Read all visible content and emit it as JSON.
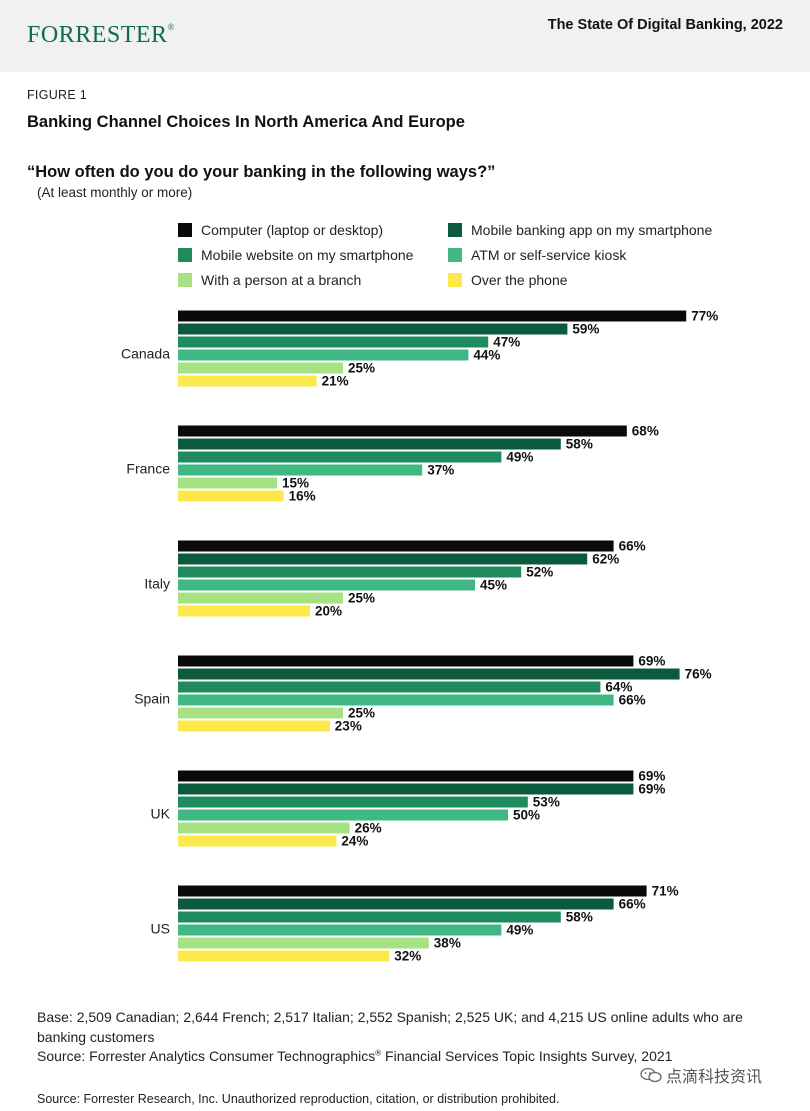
{
  "header": {
    "logo_text": "FORRESTER",
    "logo_mark": "®",
    "report_title": "The State Of Digital Banking, 2022"
  },
  "figure": {
    "label": "FIGURE 1",
    "title": "Banking Channel Choices In North America And Europe"
  },
  "colors": {
    "computer": "#0a0a0a",
    "app": "#0b5a3d",
    "mobile_web": "#1f8a5e",
    "atm": "#3fb883",
    "branch": "#a6e283",
    "phone": "#fce84a",
    "brand": "#0f6b4e"
  },
  "chart_data": {
    "type": "bar",
    "orientation": "horizontal",
    "title": "“How often do you do your banking in the following ways?”",
    "subtitle": "(At least monthly or more)",
    "categories": [
      "Canada",
      "France",
      "Italy",
      "Spain",
      "UK",
      "US"
    ],
    "value_suffix": "%",
    "xlim": [
      0,
      100
    ],
    "legend_position": "top",
    "series": [
      {
        "name": "Computer (laptop or desktop)",
        "color_key": "computer",
        "values": [
          77,
          68,
          66,
          69,
          69,
          71
        ]
      },
      {
        "name": "Mobile banking app on my smartphone",
        "color_key": "app",
        "values": [
          59,
          58,
          62,
          76,
          69,
          66
        ]
      },
      {
        "name": "Mobile website on my smartphone",
        "color_key": "mobile_web",
        "values": [
          47,
          49,
          52,
          64,
          53,
          58
        ]
      },
      {
        "name": "ATM or self-service kiosk",
        "color_key": "atm",
        "values": [
          44,
          37,
          45,
          66,
          50,
          49
        ]
      },
      {
        "name": "With a person at a branch",
        "color_key": "branch",
        "values": [
          25,
          15,
          25,
          25,
          26,
          38
        ]
      },
      {
        "name": "Over the phone",
        "color_key": "phone",
        "values": [
          21,
          16,
          20,
          23,
          24,
          32
        ]
      }
    ]
  },
  "footer": {
    "base": "Base: 2,509 Canadian; 2,644 French; 2,517 Italian; 2,552 Spanish; 2,525 UK; and 4,215 US online adults who are banking customers",
    "source_main": "Source: Forrester Analytics Consumer Technographics",
    "source_mark": "®",
    "source_rest": " Financial Services Topic Insights Survey, 2021",
    "source_copyright": "Source: Forrester Research, Inc. Unauthorized reproduction, citation, or distribution prohibited.",
    "watermark": "点滴科技资讯"
  }
}
